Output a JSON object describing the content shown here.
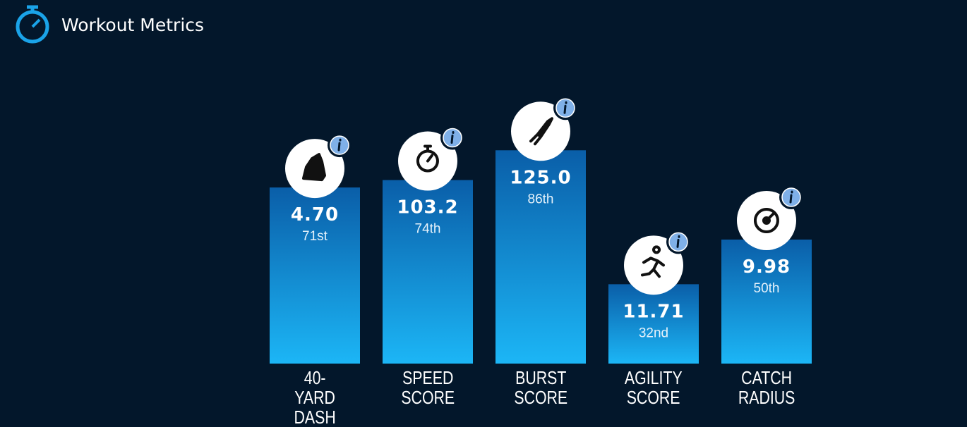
{
  "chart_data": {
    "type": "bar",
    "title": "Workout Metrics",
    "categories": [
      "40-YARD DASH",
      "SPEED SCORE",
      "BURST SCORE",
      "AGILITY SCORE",
      "CATCH RADIUS"
    ],
    "scores": [
      "4.70",
      "103.2",
      "125.0",
      "11.71",
      "9.98"
    ],
    "values": [
      71,
      74,
      86,
      32,
      50
    ],
    "value_labels": [
      "71st",
      "74th",
      "86th",
      "32nd",
      "50th"
    ],
    "ylim": [
      0,
      100
    ]
  }
}
